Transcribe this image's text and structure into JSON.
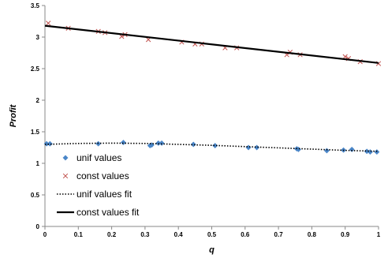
{
  "chart_data": {
    "type": "scatter",
    "title": "",
    "xlabel": "q",
    "ylabel": "Profit",
    "xlim": [
      0,
      1
    ],
    "ylim": [
      0,
      3.5
    ],
    "x_ticks": [
      0,
      0.1,
      0.2,
      0.3,
      0.4,
      0.5,
      0.6,
      0.7,
      0.8,
      0.9,
      1
    ],
    "y_ticks": [
      0,
      0.5,
      1,
      1.5,
      2,
      2.5,
      3,
      3.5
    ],
    "x_tick_labels": [
      "0",
      "0.1",
      "0.2",
      "0.3",
      "0.4",
      "0.5",
      "0.6",
      "0.7",
      "0.8",
      "0.9",
      "1"
    ],
    "y_tick_labels": [
      "0",
      "0.5",
      "1",
      "1.5",
      "2",
      "2.5",
      "3",
      "3.5"
    ],
    "grid": false,
    "legend_position": "bottom-left",
    "series": [
      {
        "name": "unif values",
        "kind": "points",
        "marker": "diamond",
        "color": "#4a86c8",
        "x": [
          0.005,
          0.015,
          0.16,
          0.235,
          0.315,
          0.32,
          0.34,
          0.35,
          0.445,
          0.51,
          0.61,
          0.635,
          0.755,
          0.76,
          0.845,
          0.895,
          0.92,
          0.965,
          0.975,
          0.995
        ],
        "y": [
          1.31,
          1.31,
          1.31,
          1.33,
          1.28,
          1.29,
          1.32,
          1.32,
          1.3,
          1.28,
          1.25,
          1.25,
          1.23,
          1.22,
          1.2,
          1.21,
          1.22,
          1.19,
          1.18,
          1.18
        ]
      },
      {
        "name": "const values",
        "kind": "points",
        "marker": "x",
        "color": "#c0504d",
        "x": [
          0.01,
          0.07,
          0.16,
          0.18,
          0.23,
          0.24,
          0.31,
          0.41,
          0.45,
          0.47,
          0.54,
          0.575,
          0.725,
          0.735,
          0.765,
          0.9,
          0.91,
          0.945,
          1.0
        ],
        "y": [
          3.22,
          3.14,
          3.09,
          3.07,
          3.01,
          3.04,
          2.96,
          2.92,
          2.89,
          2.89,
          2.83,
          2.83,
          2.72,
          2.76,
          2.72,
          2.69,
          2.66,
          2.61,
          2.58
        ]
      },
      {
        "name": "unif values fit",
        "kind": "line",
        "style": "dotted",
        "color": "#000000",
        "x": [
          0,
          0.1,
          0.2,
          0.3,
          0.4,
          0.5,
          0.6,
          0.7,
          0.8,
          0.9,
          1
        ],
        "y": [
          1.3,
          1.315,
          1.32,
          1.315,
          1.3,
          1.285,
          1.265,
          1.245,
          1.225,
          1.205,
          1.19
        ]
      },
      {
        "name": "const values fit",
        "kind": "line",
        "style": "solid",
        "color": "#000000",
        "x": [
          0,
          1
        ],
        "y": [
          3.18,
          2.59
        ]
      }
    ]
  }
}
